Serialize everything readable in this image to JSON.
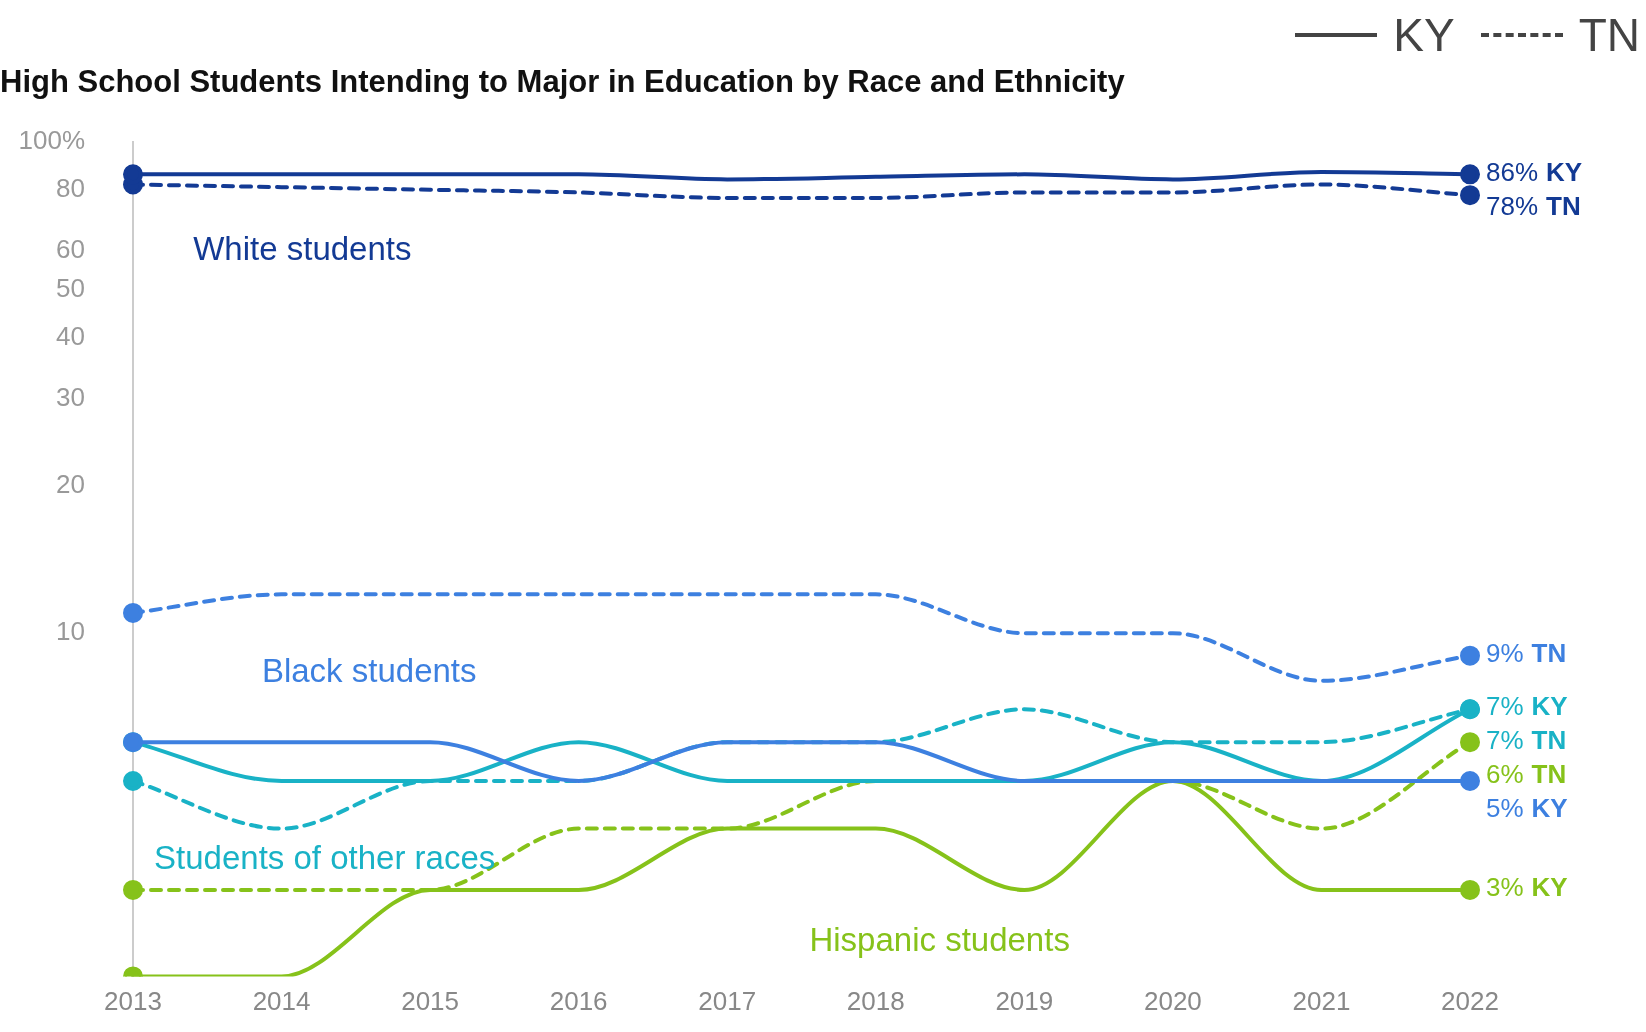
{
  "chart_data": {
    "type": "line",
    "title": "High School Students Intending to Major in Education by Race and Ethnicity",
    "categories": [
      "2013",
      "2014",
      "2015",
      "2016",
      "2017",
      "2018",
      "2019",
      "2020",
      "2021",
      "2022"
    ],
    "log": true,
    "ylim": [
      2,
      100
    ],
    "yticks": [
      {
        "value": 100,
        "label": "100%"
      },
      80,
      60,
      50,
      40,
      30,
      20,
      10
    ],
    "grid": false,
    "legend": "top right",
    "series": [
      {
        "name": "KY",
        "color": "#133a94",
        "line_style": "solid",
        "values": [
          86,
          86,
          86,
          86,
          84,
          85,
          86,
          84,
          87,
          86
        ],
        "value_labels": [
          null,
          null,
          null,
          null,
          null,
          null,
          null,
          null,
          null,
          "86%"
        ]
      },
      {
        "name": "TN",
        "color": "#133a94",
        "line_style": "dashed",
        "values": [
          82,
          81,
          80,
          79,
          77,
          77,
          79,
          79,
          82,
          78
        ],
        "value_labels": [
          null,
          null,
          null,
          null,
          null,
          null,
          null,
          null,
          null,
          "78%"
        ]
      },
      {
        "name": "KY",
        "color": "#3d80e0",
        "line_style": "solid",
        "values": [
          6,
          6,
          6,
          5,
          6,
          6,
          5,
          5,
          5,
          5
        ],
        "value_labels": [
          null,
          null,
          null,
          null,
          null,
          null,
          null,
          null,
          null,
          "5%"
        ]
      },
      {
        "name": "TN",
        "color": "#3d80e0",
        "line_style": "dashed",
        "values": [
          11,
          12,
          12,
          12,
          12,
          12,
          10,
          10,
          8,
          9
        ],
        "value_labels": [
          null,
          null,
          null,
          null,
          null,
          null,
          null,
          null,
          null,
          "9%"
        ]
      },
      {
        "name": "KY",
        "color": "#19b2c6",
        "line_style": "solid",
        "values": [
          6,
          5,
          5,
          6,
          5,
          5,
          5,
          6,
          5,
          7
        ],
        "value_labels": [
          null,
          null,
          null,
          null,
          null,
          null,
          null,
          null,
          null,
          "7%"
        ]
      },
      {
        "name": "TN",
        "color": "#19b2c6",
        "line_style": "dashed",
        "values": [
          5,
          4,
          5,
          5,
          6,
          6,
          7,
          6,
          6,
          7
        ],
        "value_labels": [
          null,
          null,
          null,
          null,
          null,
          null,
          null,
          null,
          null,
          "7%"
        ]
      },
      {
        "name": "KY",
        "color": "#86c21a",
        "line_style": "solid",
        "values": [
          2,
          2,
          3,
          3,
          4,
          4,
          3,
          5,
          3,
          3
        ],
        "value_labels": [
          null,
          null,
          null,
          null,
          null,
          null,
          null,
          null,
          null,
          "3%"
        ]
      },
      {
        "name": "TN",
        "color": "#86c21a",
        "line_style": "dashed",
        "values": [
          3,
          3,
          3,
          4,
          4,
          5,
          5,
          5,
          4,
          6
        ],
        "value_labels": [
          null,
          null,
          null,
          null,
          null,
          null,
          null,
          null,
          null,
          "6%"
        ]
      }
    ],
    "annotations": [
      "White students",
      "Black students",
      "Students of other races",
      "Hispanic students"
    ]
  }
}
